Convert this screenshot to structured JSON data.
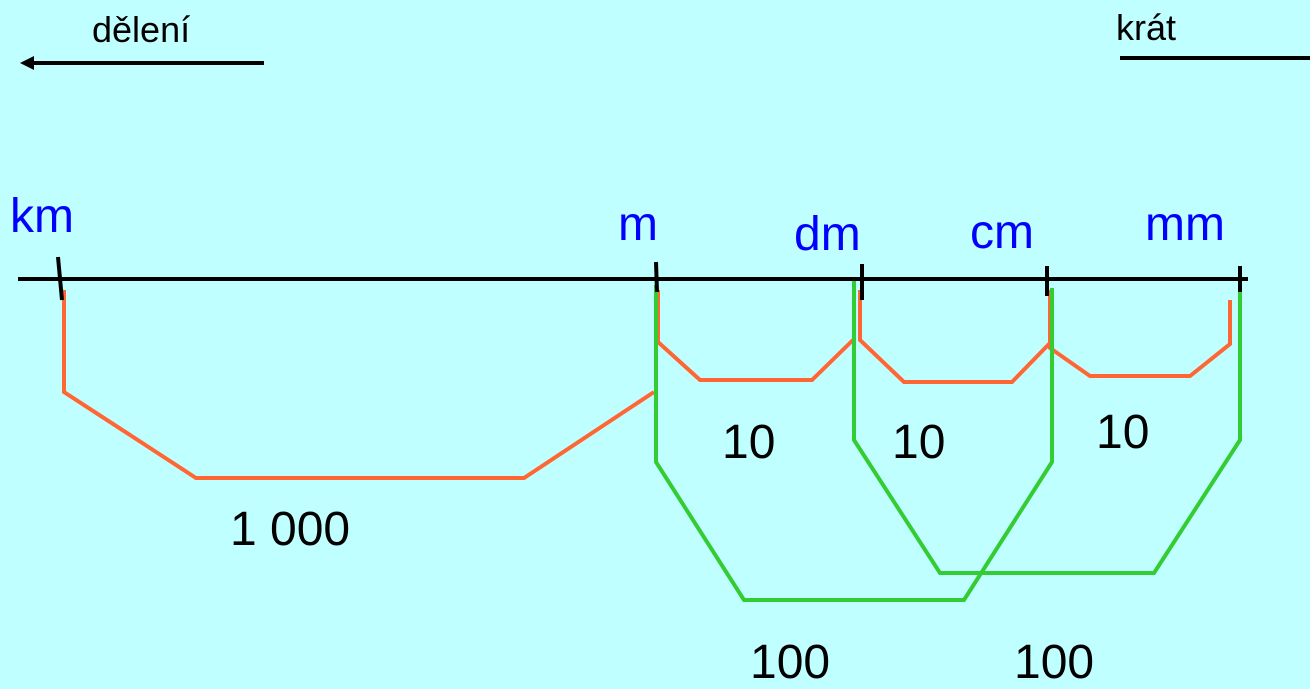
{
  "header": {
    "left_label": "dělení",
    "right_label": "krát"
  },
  "units": [
    "km",
    "m",
    "dm",
    "cm",
    "mm"
  ],
  "factors": {
    "km_m": "1 000",
    "m_dm": "10",
    "dm_cm": "10",
    "cm_mm": "10",
    "m_cm": "100",
    "dm_mm": "100"
  },
  "colors": {
    "background": "#c0ffff",
    "unit_text": "#0000ff",
    "axis": "#000000",
    "orange_bracket": "#ff6633",
    "green_bracket": "#33cc33"
  }
}
